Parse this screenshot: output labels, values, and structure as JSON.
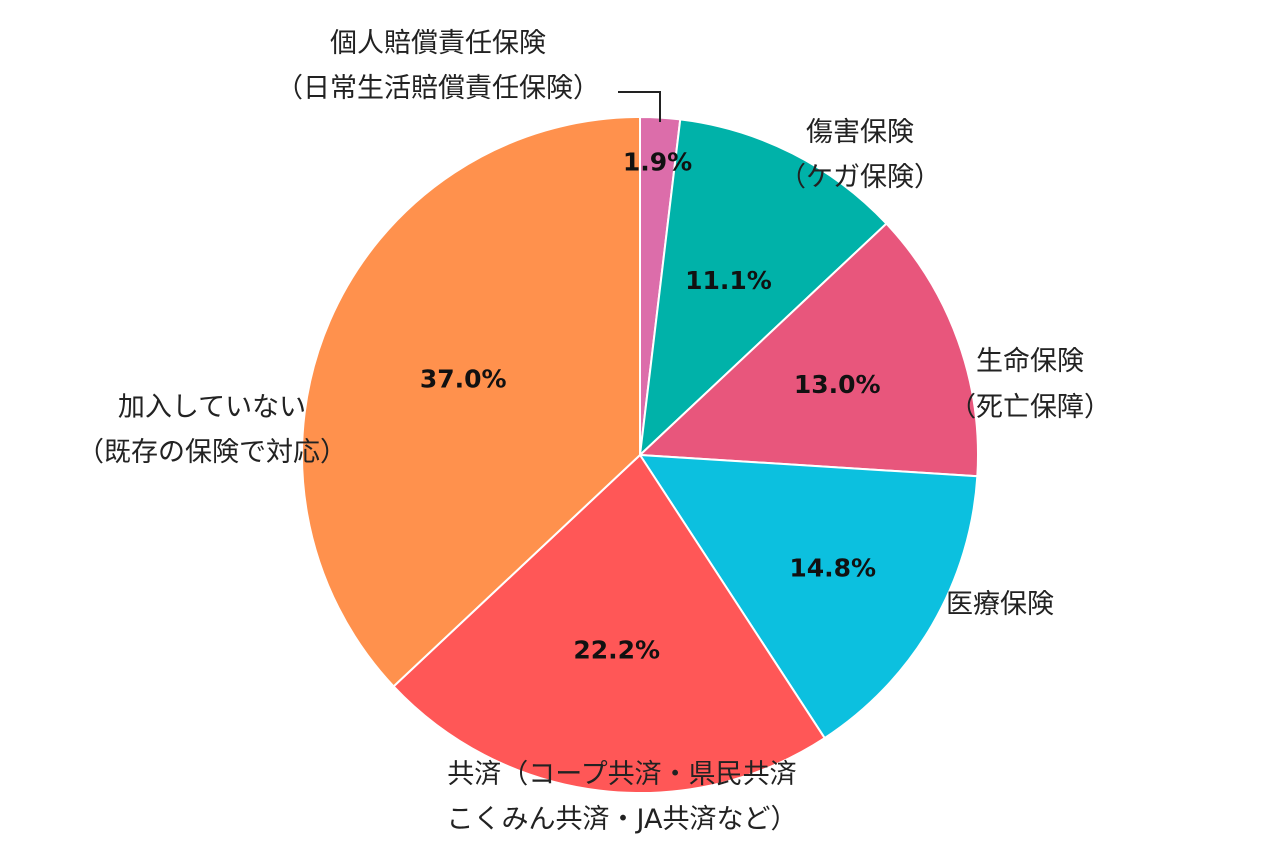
{
  "chart_data": {
    "type": "pie",
    "slices": [
      {
        "lines": [
          "個人賠償責任保険",
          "（日常生活賠償責任保険）"
        ],
        "value": 1.9,
        "value_label": "1.9%",
        "color": "#DC6DAA"
      },
      {
        "lines": [
          "傷害保険",
          "（ケガ保険）"
        ],
        "value": 11.1,
        "value_label": "11.1%",
        "color": "#00B2A9"
      },
      {
        "lines": [
          "生命保険",
          "（死亡保障）"
        ],
        "value": 13.0,
        "value_label": "13.0%",
        "color": "#E8567C"
      },
      {
        "lines": [
          "医療保険"
        ],
        "value": 14.8,
        "value_label": "14.8%",
        "color": "#0CC0DF"
      },
      {
        "lines": [
          "共済（コープ共済・県民共済",
          "こくみん共済・JA共済など）"
        ],
        "value": 22.2,
        "value_label": "22.2%",
        "color": "#FF5757"
      },
      {
        "lines": [
          "加入していない",
          "（既存の保険で対応）"
        ],
        "value": 37.0,
        "value_label": "37.0%",
        "color": "#FF914D"
      }
    ],
    "start": "12 o'clock",
    "direction": "clockwise",
    "legend": "none (labels beside slices)"
  }
}
